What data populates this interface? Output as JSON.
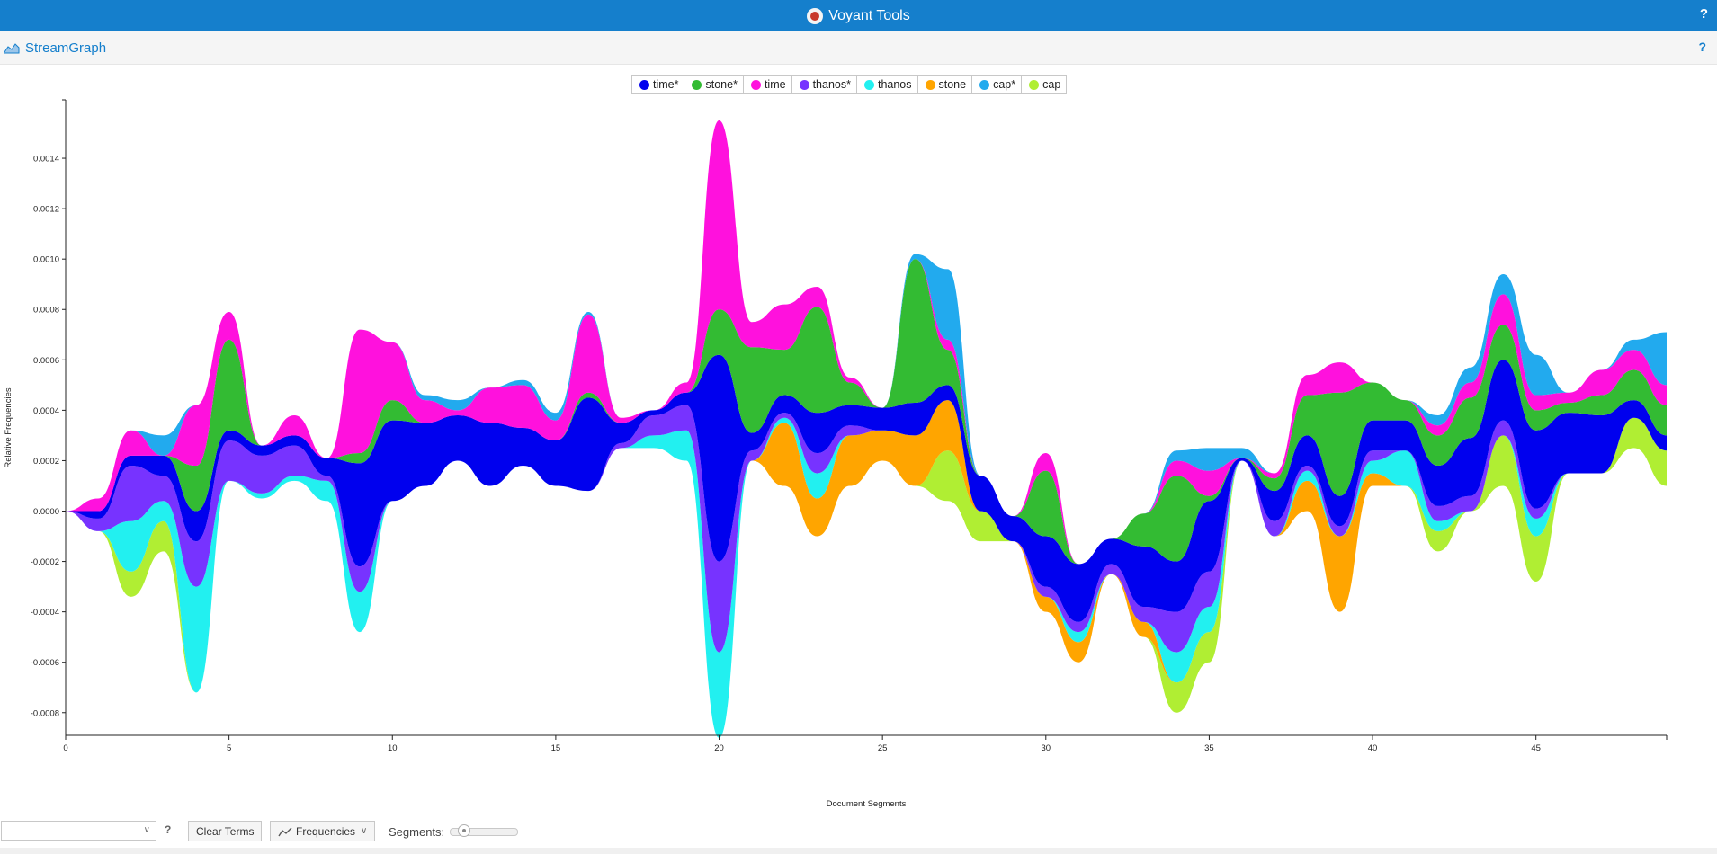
{
  "app": {
    "title": "Voyant Tools",
    "help": "?"
  },
  "panel": {
    "title": "StreamGraph",
    "help": "?"
  },
  "legend": [
    {
      "label": "time*",
      "color": "#0000ee"
    },
    {
      "label": "stone*",
      "color": "#33bb33"
    },
    {
      "label": "time",
      "color": "#ff11dd"
    },
    {
      "label": "thanos*",
      "color": "#7733ff"
    },
    {
      "label": "thanos",
      "color": "#22f0f0"
    },
    {
      "label": "stone",
      "color": "#ffa500"
    },
    {
      "label": "cap*",
      "color": "#22aaee"
    },
    {
      "label": "cap",
      "color": "#b0ee33"
    }
  ],
  "chart_data": {
    "type": "area",
    "subtype": "streamgraph",
    "ylabel": "Relative Frequencies",
    "xlabel": "Document Segments",
    "xlim": [
      0,
      49
    ],
    "ylim": [
      -0.00089,
      0.00155
    ],
    "x_ticks": [
      0,
      5,
      10,
      15,
      20,
      25,
      30,
      35,
      40,
      45
    ],
    "y_ticks": [
      -0.0008,
      -0.0006,
      -0.0004,
      -0.0002,
      0.0,
      0.0002,
      0.0004,
      0.0006,
      0.0008,
      0.001,
      0.0012,
      0.0014
    ],
    "baseline": [
      0,
      -8e-05,
      -0.00034,
      -0.00016,
      -0.00072,
      0.00012,
      5e-05,
      0.00012,
      4e-05,
      -0.00048,
      4e-05,
      0.0001,
      0.0002,
      0.0001,
      0.00018,
      0.0001,
      8e-05,
      0.00025,
      0.00025,
      0.0002,
      -0.0009,
      0.0002,
      0.0001,
      -0.0001,
      0.0001,
      0.0002,
      0.0001,
      4e-05,
      -0.00012,
      -0.00012,
      -0.0004,
      -0.0006,
      -0.00025,
      -0.0005,
      -0.0008,
      -0.0006,
      0.0002,
      -0.0001,
      0.0,
      -0.0004,
      0.0001,
      0.0001,
      -0.00016,
      0.0,
      0.0001,
      -0.00028,
      0.00015,
      0.00015,
      0.00025,
      0.0001
    ],
    "series": [
      {
        "name": "cap",
        "values": [
          0,
          0,
          0.0001,
          0.00012,
          0,
          0,
          0,
          0,
          0,
          0,
          0,
          0,
          0,
          0,
          0,
          0,
          0,
          0,
          0,
          0,
          0,
          0,
          0,
          0,
          0,
          0,
          0,
          0.0002,
          0.00012,
          0,
          0,
          0,
          0,
          0,
          0.00012,
          0.00012,
          0,
          0,
          0,
          0,
          0,
          0,
          8e-05,
          0,
          0.0002,
          0.00018,
          0,
          0,
          0.00012,
          0.00014
        ]
      },
      {
        "name": "stone",
        "values": [
          0,
          0,
          0,
          0,
          0,
          0,
          0,
          0,
          0,
          0,
          0,
          0,
          0,
          0,
          0,
          0,
          0,
          0,
          0,
          0,
          0,
          0,
          0.00025,
          0.00015,
          0.0002,
          0.00012,
          0.0002,
          0.0002,
          0,
          0,
          6e-05,
          8e-05,
          0,
          6e-05,
          0,
          0,
          0,
          0,
          0.00012,
          0.0003,
          5e-05,
          0,
          0,
          0,
          0,
          0,
          0,
          0,
          0,
          0
        ]
      },
      {
        "name": "thanos",
        "values": [
          0,
          0,
          0.0002,
          8e-05,
          0.00042,
          0,
          2e-05,
          2e-05,
          8e-05,
          0.00016,
          0,
          0,
          0,
          0,
          0,
          0,
          0,
          0,
          5e-05,
          0.00012,
          0.00034,
          0,
          2e-05,
          0.0001,
          0,
          0,
          0,
          0,
          0,
          0,
          0,
          4e-05,
          0,
          0,
          0.00012,
          0.0001,
          0,
          0,
          4e-05,
          0,
          5e-05,
          0.00014,
          4e-05,
          0,
          0,
          7e-05,
          0,
          0,
          0,
          0
        ]
      },
      {
        "name": "thanos*",
        "values": [
          0,
          5e-05,
          0.00022,
          0.0001,
          0.00018,
          0.00016,
          0.00015,
          0.00012,
          2e-05,
          0.0001,
          0,
          0,
          0,
          0,
          0,
          0,
          0,
          2e-05,
          8e-05,
          0.0001,
          0.00036,
          4e-05,
          2e-05,
          8e-05,
          4e-05,
          0,
          0,
          0,
          0,
          0,
          4e-05,
          4e-05,
          4e-05,
          6e-05,
          0.00016,
          0.00014,
          0,
          6e-05,
          2e-05,
          4e-05,
          4e-05,
          0,
          6e-05,
          6e-05,
          6e-05,
          4e-05,
          0,
          0,
          0,
          0
        ]
      },
      {
        "name": "time*",
        "values": [
          0,
          3e-05,
          4e-05,
          8e-05,
          0.00012,
          4e-05,
          4e-05,
          4e-05,
          7e-05,
          0.00041,
          0.00032,
          0.00025,
          0.00018,
          0.00025,
          0.00015,
          0.00018,
          0.00037,
          8e-05,
          2e-05,
          5e-05,
          0.00082,
          7e-05,
          7e-05,
          0.00016,
          8e-05,
          9e-05,
          0.00013,
          6e-05,
          0.00014,
          0.0001,
          0.0002,
          0.00023,
          0.0001,
          0.00024,
          0.0002,
          0.00028,
          1e-05,
          0.00012,
          0.00012,
          0.00012,
          0.00012,
          0.00012,
          0.00016,
          0.00023,
          0.00024,
          0.00031,
          0.00024,
          0.00023,
          7e-05,
          6e-05
        ]
      },
      {
        "name": "stone*",
        "values": [
          0,
          0,
          0,
          0,
          0.00018,
          0.00036,
          0,
          0,
          0,
          4e-05,
          8e-05,
          0,
          0,
          0,
          0,
          0,
          2e-05,
          0,
          0,
          0,
          0.00018,
          0.00034,
          0.00018,
          0.00042,
          9e-05,
          0,
          0.00057,
          0.00014,
          0,
          0,
          0.00026,
          0,
          0,
          0.00013,
          0.00034,
          2e-05,
          0,
          5e-05,
          0.00016,
          0.00041,
          0.00015,
          8e-05,
          0.00012,
          0.00016,
          0.00014,
          8e-05,
          4e-05,
          8e-05,
          0.00012,
          0.00012
        ]
      },
      {
        "name": "time",
        "values": [
          0,
          5e-05,
          0.0001,
          0,
          0.00024,
          0.00011,
          0,
          8e-05,
          0,
          0.00049,
          0.00023,
          9e-05,
          2e-05,
          0.00014,
          0.00017,
          8e-05,
          0.00031,
          2e-05,
          0,
          4e-05,
          0.00075,
          0.0001,
          0.00018,
          8e-05,
          2e-05,
          0,
          0,
          4e-05,
          0,
          0,
          7e-05,
          0,
          0,
          0,
          6e-05,
          0.0001,
          0,
          2e-05,
          8e-05,
          0.00012,
          0,
          0,
          4e-05,
          6e-05,
          0.00012,
          6e-05,
          4e-05,
          0.0001,
          8e-05,
          8e-05
        ]
      },
      {
        "name": "cap*",
        "values": [
          0,
          0,
          0,
          8e-05,
          0,
          0,
          0,
          0,
          0,
          0,
          0,
          2e-05,
          4e-05,
          0,
          2e-05,
          3e-05,
          1e-05,
          0,
          0,
          0,
          0,
          0,
          0,
          0,
          0,
          0,
          2e-05,
          0.00028,
          0,
          0,
          0,
          0,
          0,
          0,
          4e-05,
          9e-05,
          4e-05,
          0,
          0,
          0,
          0,
          0,
          4e-05,
          6e-05,
          8e-05,
          0.00016,
          0,
          0,
          4e-05,
          0.00021
        ]
      }
    ]
  },
  "toolbar": {
    "search_value": "",
    "help": "?",
    "clear_terms": "Clear Terms",
    "frequencies": "Frequencies",
    "segments_label": "Segments:"
  }
}
